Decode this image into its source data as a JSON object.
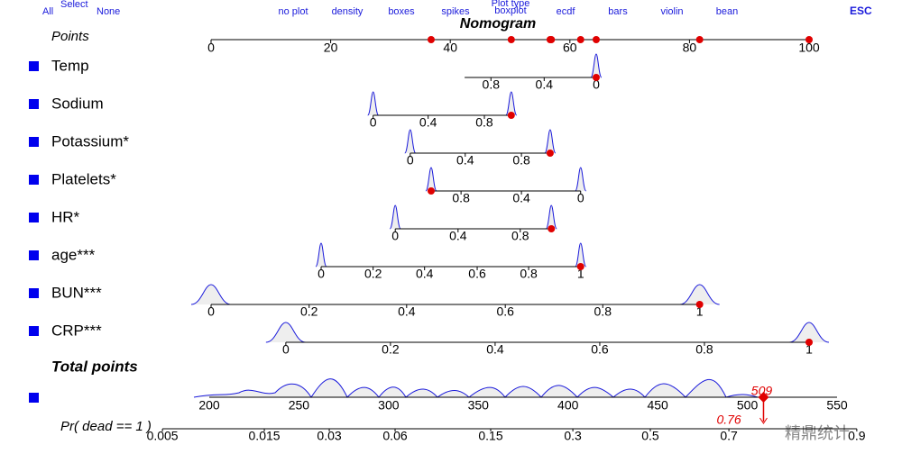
{
  "toolbar": {
    "all": "All",
    "select": "Select",
    "none": "None",
    "plot_type_label": "Plot type",
    "plot_types": [
      "no plot",
      "density",
      "boxes",
      "spikes",
      "boxplot",
      "ecdf",
      "bars",
      "violin",
      "bean"
    ],
    "esc": "ESC"
  },
  "watermark": "精鼎统计",
  "chart_data": {
    "type": "nomogram",
    "title": "Nomogram",
    "color": "#e00000",
    "points": {
      "label": "Points",
      "xlim": [
        0,
        100
      ],
      "ticks": [
        0,
        20,
        40,
        60,
        80,
        100
      ]
    },
    "variables": [
      {
        "name": "Temp",
        "lim": [
          42.4,
          64.4
        ],
        "ticks": [
          0.8,
          0.4,
          0
        ],
        "tick_points": [
          46.8,
          55.7,
          64.4
        ],
        "point": 64.4
      },
      {
        "name": "Sodium",
        "lim": [
          27.1,
          50.2
        ],
        "ticks": [
          0,
          0.4,
          0.8
        ],
        "tick_points": [
          27.1,
          36.3,
          45.7
        ],
        "point": 50.2
      },
      {
        "name": "Potassium*",
        "lim": [
          33.3,
          56.7
        ],
        "ticks": [
          0,
          0.4,
          0.8
        ],
        "tick_points": [
          33.3,
          42.5,
          51.9
        ],
        "point": 56.7
      },
      {
        "name": "Platelets*",
        "lim": [
          36.8,
          61.8
        ],
        "ticks": [
          0.8,
          0.4,
          0
        ],
        "tick_points": [
          41.8,
          51.9,
          61.8
        ],
        "point": 36.8
      },
      {
        "name": "HR*",
        "lim": [
          30.8,
          56.9
        ],
        "ticks": [
          0,
          0.4,
          0.8
        ],
        "tick_points": [
          30.8,
          41.3,
          51.7
        ],
        "point": 56.9
      },
      {
        "name": "age***",
        "lim": [
          18.4,
          61.8
        ],
        "ticks": [
          0,
          0.2,
          0.4,
          0.6,
          0.8,
          1
        ],
        "tick_points": [
          18.4,
          27.1,
          35.7,
          44.5,
          53.1,
          61.8
        ],
        "point": 61.8
      },
      {
        "name": "BUN***",
        "lim": [
          0,
          81.7
        ],
        "ticks": [
          0,
          0.2,
          0.4,
          0.6,
          0.8,
          1
        ],
        "tick_points": [
          0,
          16.4,
          32.7,
          49.2,
          65.5,
          81.7
        ],
        "point": 81.7
      },
      {
        "name": "CRP***",
        "lim": [
          12.5,
          100
        ],
        "ticks": [
          0,
          0.2,
          0.4,
          0.6,
          0.8,
          1
        ],
        "tick_points": [
          12.5,
          30.0,
          47.5,
          65.0,
          82.5,
          100
        ],
        "point": 100
      }
    ],
    "total": {
      "label": "Total points",
      "xlim": [
        200,
        550
      ],
      "ticks": [
        200,
        250,
        300,
        350,
        400,
        450,
        500,
        550
      ],
      "value": 509
    },
    "probability": {
      "label": "Pr( dead == 1 )",
      "ticks": [
        0.005,
        0.015,
        0.03,
        0.06,
        0.15,
        0.3,
        0.5,
        0.7,
        0.9
      ],
      "tick_points": [
        173.9,
        230.7,
        266.9,
        303.6,
        356.9,
        402.7,
        445.9,
        489.7,
        561
      ],
      "value": 0.76
    }
  }
}
